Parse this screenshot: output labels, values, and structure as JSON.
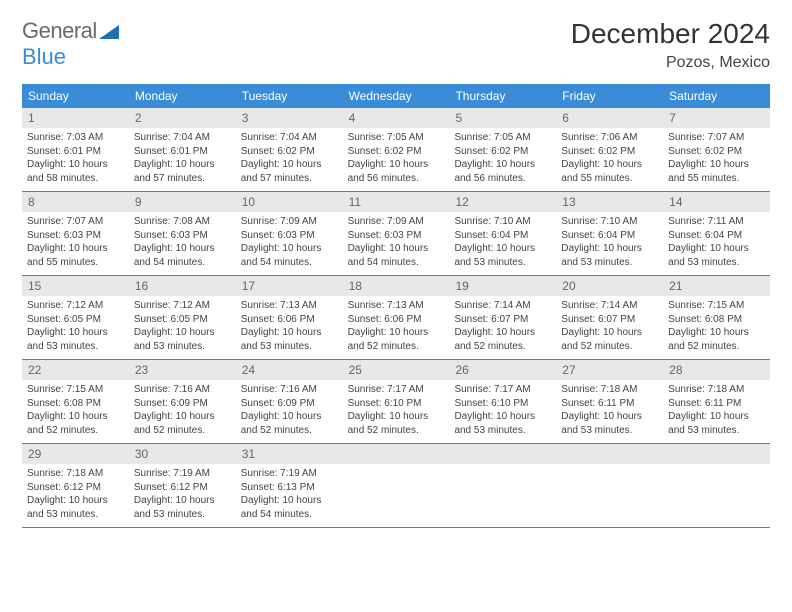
{
  "logo": {
    "text1": "General",
    "text2": "Blue"
  },
  "header": {
    "title": "December 2024",
    "location": "Pozos, Mexico"
  },
  "colors": {
    "header_bg": "#3a8cd6",
    "daynum_bg": "#e8e8e8",
    "rule": "#3a8cd6",
    "text": "#333333"
  },
  "weekdays": [
    "Sunday",
    "Monday",
    "Tuesday",
    "Wednesday",
    "Thursday",
    "Friday",
    "Saturday"
  ],
  "days": [
    {
      "n": "1",
      "sr": "7:03 AM",
      "ss": "6:01 PM",
      "dl": "10 hours and 58 minutes."
    },
    {
      "n": "2",
      "sr": "7:04 AM",
      "ss": "6:01 PM",
      "dl": "10 hours and 57 minutes."
    },
    {
      "n": "3",
      "sr": "7:04 AM",
      "ss": "6:02 PM",
      "dl": "10 hours and 57 minutes."
    },
    {
      "n": "4",
      "sr": "7:05 AM",
      "ss": "6:02 PM",
      "dl": "10 hours and 56 minutes."
    },
    {
      "n": "5",
      "sr": "7:05 AM",
      "ss": "6:02 PM",
      "dl": "10 hours and 56 minutes."
    },
    {
      "n": "6",
      "sr": "7:06 AM",
      "ss": "6:02 PM",
      "dl": "10 hours and 55 minutes."
    },
    {
      "n": "7",
      "sr": "7:07 AM",
      "ss": "6:02 PM",
      "dl": "10 hours and 55 minutes."
    },
    {
      "n": "8",
      "sr": "7:07 AM",
      "ss": "6:03 PM",
      "dl": "10 hours and 55 minutes."
    },
    {
      "n": "9",
      "sr": "7:08 AM",
      "ss": "6:03 PM",
      "dl": "10 hours and 54 minutes."
    },
    {
      "n": "10",
      "sr": "7:09 AM",
      "ss": "6:03 PM",
      "dl": "10 hours and 54 minutes."
    },
    {
      "n": "11",
      "sr": "7:09 AM",
      "ss": "6:03 PM",
      "dl": "10 hours and 54 minutes."
    },
    {
      "n": "12",
      "sr": "7:10 AM",
      "ss": "6:04 PM",
      "dl": "10 hours and 53 minutes."
    },
    {
      "n": "13",
      "sr": "7:10 AM",
      "ss": "6:04 PM",
      "dl": "10 hours and 53 minutes."
    },
    {
      "n": "14",
      "sr": "7:11 AM",
      "ss": "6:04 PM",
      "dl": "10 hours and 53 minutes."
    },
    {
      "n": "15",
      "sr": "7:12 AM",
      "ss": "6:05 PM",
      "dl": "10 hours and 53 minutes."
    },
    {
      "n": "16",
      "sr": "7:12 AM",
      "ss": "6:05 PM",
      "dl": "10 hours and 53 minutes."
    },
    {
      "n": "17",
      "sr": "7:13 AM",
      "ss": "6:06 PM",
      "dl": "10 hours and 53 minutes."
    },
    {
      "n": "18",
      "sr": "7:13 AM",
      "ss": "6:06 PM",
      "dl": "10 hours and 52 minutes."
    },
    {
      "n": "19",
      "sr": "7:14 AM",
      "ss": "6:07 PM",
      "dl": "10 hours and 52 minutes."
    },
    {
      "n": "20",
      "sr": "7:14 AM",
      "ss": "6:07 PM",
      "dl": "10 hours and 52 minutes."
    },
    {
      "n": "21",
      "sr": "7:15 AM",
      "ss": "6:08 PM",
      "dl": "10 hours and 52 minutes."
    },
    {
      "n": "22",
      "sr": "7:15 AM",
      "ss": "6:08 PM",
      "dl": "10 hours and 52 minutes."
    },
    {
      "n": "23",
      "sr": "7:16 AM",
      "ss": "6:09 PM",
      "dl": "10 hours and 52 minutes."
    },
    {
      "n": "24",
      "sr": "7:16 AM",
      "ss": "6:09 PM",
      "dl": "10 hours and 52 minutes."
    },
    {
      "n": "25",
      "sr": "7:17 AM",
      "ss": "6:10 PM",
      "dl": "10 hours and 52 minutes."
    },
    {
      "n": "26",
      "sr": "7:17 AM",
      "ss": "6:10 PM",
      "dl": "10 hours and 53 minutes."
    },
    {
      "n": "27",
      "sr": "7:18 AM",
      "ss": "6:11 PM",
      "dl": "10 hours and 53 minutes."
    },
    {
      "n": "28",
      "sr": "7:18 AM",
      "ss": "6:11 PM",
      "dl": "10 hours and 53 minutes."
    },
    {
      "n": "29",
      "sr": "7:18 AM",
      "ss": "6:12 PM",
      "dl": "10 hours and 53 minutes."
    },
    {
      "n": "30",
      "sr": "7:19 AM",
      "ss": "6:12 PM",
      "dl": "10 hours and 53 minutes."
    },
    {
      "n": "31",
      "sr": "7:19 AM",
      "ss": "6:13 PM",
      "dl": "10 hours and 54 minutes."
    }
  ],
  "labels": {
    "sunrise": "Sunrise: ",
    "sunset": "Sunset: ",
    "daylight": "Daylight: "
  }
}
